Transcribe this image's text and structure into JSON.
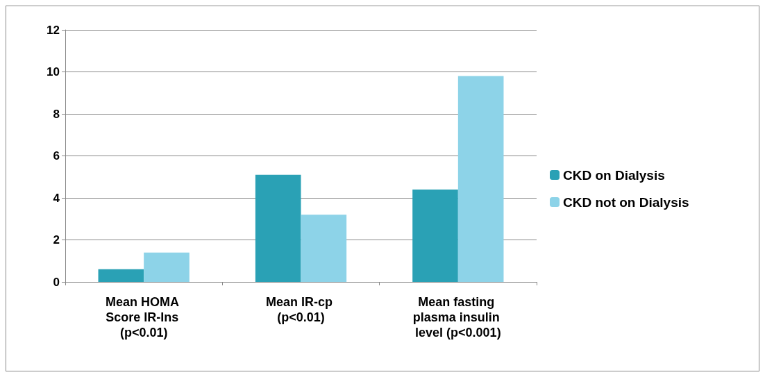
{
  "chart_data": {
    "type": "bar",
    "categories": [
      "Mean HOMA Score IR-Ins (p<0.01)",
      "Mean IR-cp (p<0.01)",
      "Mean fasting plasma insulin level (p<0.001)"
    ],
    "series": [
      {
        "name": "CKD on Dialysis",
        "color": "#2aa1b5",
        "values": [
          0.6,
          5.1,
          4.4
        ]
      },
      {
        "name": "CKD not on Dialysis",
        "color": "#8dd3e8",
        "values": [
          1.4,
          3.2,
          9.8
        ]
      }
    ],
    "ylim": [
      0,
      12
    ],
    "yticks": [
      0,
      2,
      4,
      6,
      8,
      10,
      12
    ],
    "grid": "y",
    "legend": "right"
  }
}
